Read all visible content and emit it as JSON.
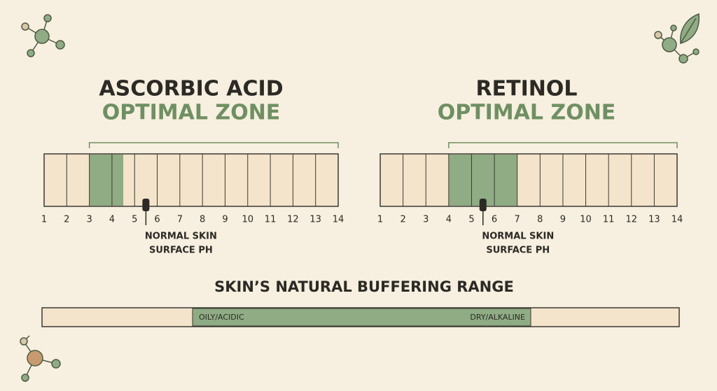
{
  "panels": [
    {
      "title": "ASCORBIC ACID",
      "subtitle": "OPTIMAL ZONE",
      "range": [
        1,
        14
      ],
      "ticks": [
        1,
        2,
        3,
        4,
        5,
        6,
        7,
        8,
        9,
        10,
        11,
        12,
        13,
        14
      ],
      "zone": [
        3,
        4.5
      ],
      "marker": 5.5,
      "marker_label": [
        "NORMAL SKIN",
        "SURFACE PH"
      ]
    },
    {
      "title": "RETINOL",
      "subtitle": "OPTIMAL ZONE",
      "range": [
        1,
        14
      ],
      "ticks": [
        1,
        2,
        3,
        4,
        5,
        6,
        7,
        8,
        9,
        10,
        11,
        12,
        13,
        14
      ],
      "zone": [
        4,
        7
      ],
      "marker": 5.5,
      "marker_label": [
        "NORMAL SKIN",
        "SURFACE PH"
      ]
    }
  ],
  "buffer": {
    "title": "SKIN’S NATURAL BUFFERING RANGE",
    "left_label": "OILY/ACIDIC",
    "right_label": "DRY/ALKALINE"
  }
}
